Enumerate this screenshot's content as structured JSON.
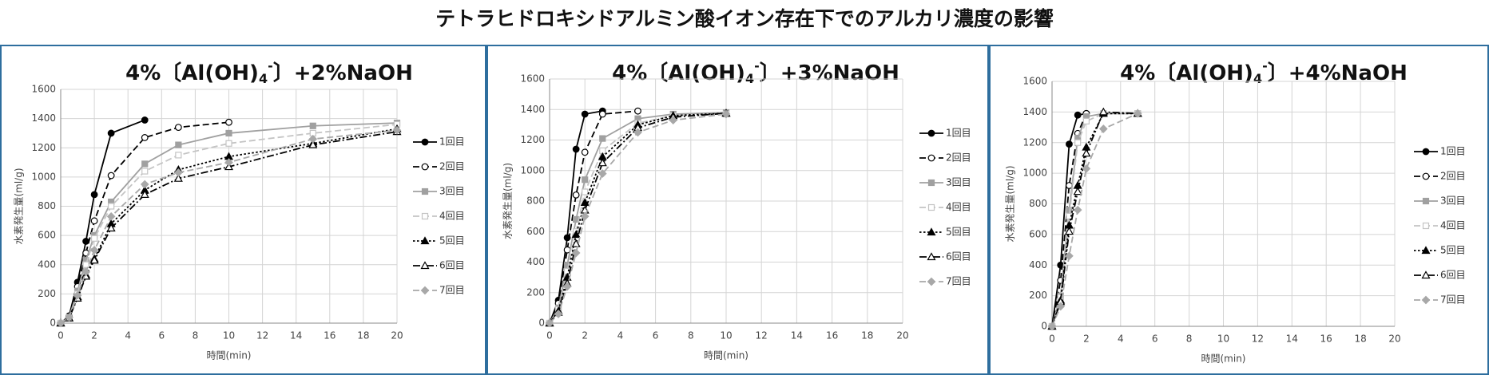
{
  "title": "テトラヒドロキシドアルミン酸イオン存在下でのアルカリ濃度の影響",
  "chart_data": [
    {
      "type": "line",
      "title": [
        "4%〔Al(OH)",
        "4",
        "-",
        "〕+2%NaOH"
      ],
      "xlabel": "時間(min)",
      "ylabel": "水素発生量(ml/g)",
      "xlim": [
        0,
        20
      ],
      "xticks": [
        0,
        2,
        4,
        6,
        8,
        10,
        12,
        14,
        16,
        18,
        20
      ],
      "ylim": [
        0,
        1600
      ],
      "yticks": [
        0,
        200,
        400,
        600,
        800,
        1000,
        1200,
        1400,
        1600
      ],
      "grid": true,
      "legend": "right",
      "series": [
        {
          "name": "1回目",
          "color": "#000000",
          "dash": "solid",
          "marker": "circle",
          "filled": true,
          "x": [
            0,
            0.5,
            1,
            1.5,
            2,
            3,
            5
          ],
          "values": [
            0,
            50,
            280,
            560,
            880,
            1300,
            1390
          ]
        },
        {
          "name": "2回目",
          "color": "#000000",
          "dash": "dashed",
          "marker": "circle",
          "filled": false,
          "x": [
            0,
            0.5,
            1,
            1.5,
            2,
            3,
            5,
            7,
            10
          ],
          "values": [
            0,
            45,
            250,
            480,
            700,
            1010,
            1270,
            1340,
            1375
          ]
        },
        {
          "name": "3回目",
          "color": "#a0a0a0",
          "dash": "solid",
          "marker": "square",
          "filled": true,
          "x": [
            0,
            0.5,
            1,
            1.5,
            2,
            3,
            5,
            7,
            10,
            15,
            20
          ],
          "values": [
            0,
            40,
            220,
            430,
            600,
            830,
            1090,
            1220,
            1300,
            1350,
            1370
          ]
        },
        {
          "name": "4回目",
          "color": "#c4c4c4",
          "dash": "dashed",
          "marker": "square",
          "filled": false,
          "x": [
            0,
            0.5,
            1,
            1.5,
            2,
            3,
            5,
            7,
            10,
            15,
            20
          ],
          "values": [
            0,
            40,
            200,
            400,
            580,
            800,
            1040,
            1150,
            1230,
            1300,
            1360
          ]
        },
        {
          "name": "5回目",
          "color": "#000000",
          "dash": "dotted",
          "marker": "triangle",
          "filled": true,
          "x": [
            0,
            0.5,
            1,
            1.5,
            2,
            3,
            5,
            7,
            10,
            15,
            20
          ],
          "values": [
            0,
            35,
            180,
            330,
            440,
            680,
            910,
            1050,
            1140,
            1230,
            1330
          ]
        },
        {
          "name": "6回目",
          "color": "#000000",
          "dash": "dashdot",
          "marker": "triangle",
          "filled": false,
          "x": [
            0,
            0.5,
            1,
            1.5,
            2,
            3,
            5,
            7,
            10,
            15,
            20
          ],
          "values": [
            0,
            35,
            170,
            320,
            430,
            650,
            880,
            990,
            1070,
            1220,
            1310
          ]
        },
        {
          "name": "7回目",
          "color": "#a8a8a8",
          "dash": "dashed",
          "marker": "diamond",
          "filled": true,
          "x": [
            0,
            0.5,
            1,
            1.5,
            2,
            3,
            5,
            7,
            10,
            15,
            20
          ],
          "values": [
            0,
            40,
            190,
            350,
            500,
            730,
            950,
            1030,
            1100,
            1260,
            1320
          ]
        }
      ]
    },
    {
      "type": "line",
      "title": [
        "4%〔Al(OH)",
        "4",
        "-",
        "〕+3%NaOH"
      ],
      "xlabel": "時間(min)",
      "ylabel": "水素発生量(ml/g)",
      "xlim": [
        0,
        20
      ],
      "xticks": [
        0,
        2,
        4,
        6,
        8,
        10,
        12,
        14,
        16,
        18,
        20
      ],
      "ylim": [
        0,
        1600
      ],
      "yticks": [
        0,
        200,
        400,
        600,
        800,
        1000,
        1200,
        1400,
        1600
      ],
      "grid": true,
      "legend": "right",
      "series": [
        {
          "name": "1回目",
          "color": "#000000",
          "dash": "solid",
          "marker": "circle",
          "filled": true,
          "x": [
            0,
            0.5,
            1,
            1.5,
            2,
            3
          ],
          "values": [
            0,
            150,
            560,
            1140,
            1370,
            1390
          ]
        },
        {
          "name": "2回目",
          "color": "#000000",
          "dash": "dashed",
          "marker": "circle",
          "filled": false,
          "x": [
            0,
            0.5,
            1,
            1.5,
            2,
            3,
            5
          ],
          "values": [
            0,
            130,
            480,
            840,
            1120,
            1370,
            1390
          ]
        },
        {
          "name": "3回目",
          "color": "#a0a0a0",
          "dash": "solid",
          "marker": "square",
          "filled": true,
          "x": [
            0,
            0.5,
            1,
            1.5,
            2,
            3,
            5,
            7,
            10
          ],
          "values": [
            0,
            100,
            380,
            680,
            940,
            1210,
            1340,
            1370,
            1380
          ]
        },
        {
          "name": "4回目",
          "color": "#c4c4c4",
          "dash": "dashed",
          "marker": "square",
          "filled": false,
          "x": [
            0,
            0.5,
            1,
            1.5,
            2,
            3,
            5,
            7,
            10
          ],
          "values": [
            0,
            90,
            340,
            600,
            860,
            1130,
            1310,
            1360,
            1370
          ]
        },
        {
          "name": "5回目",
          "color": "#000000",
          "dash": "dotted",
          "marker": "triangle",
          "filled": true,
          "x": [
            0,
            0.5,
            1,
            1.5,
            2,
            3,
            5,
            7,
            10
          ],
          "values": [
            0,
            80,
            300,
            580,
            790,
            1090,
            1300,
            1360,
            1375
          ]
        },
        {
          "name": "6回目",
          "color": "#000000",
          "dash": "dashdot",
          "marker": "triangle",
          "filled": false,
          "x": [
            0,
            0.5,
            1,
            1.5,
            2,
            3,
            5,
            7,
            10
          ],
          "values": [
            0,
            70,
            260,
            520,
            740,
            1050,
            1280,
            1350,
            1375
          ]
        },
        {
          "name": "7回目",
          "color": "#a8a8a8",
          "dash": "dashed",
          "marker": "diamond",
          "filled": true,
          "x": [
            0,
            0.5,
            1,
            1.5,
            2,
            3,
            5,
            7,
            10
          ],
          "values": [
            0,
            60,
            240,
            460,
            700,
            980,
            1250,
            1330,
            1370
          ]
        }
      ]
    },
    {
      "type": "line",
      "title": [
        "4%〔Al(OH)",
        "4",
        "-",
        "〕+4%NaOH"
      ],
      "xlabel": "時間(min)",
      "ylabel": "水素発生量(ml/g)",
      "xlim": [
        0,
        20
      ],
      "xticks": [
        0,
        2,
        4,
        6,
        8,
        10,
        12,
        14,
        16,
        18,
        20
      ],
      "ylim": [
        0,
        1600
      ],
      "yticks": [
        0,
        200,
        400,
        600,
        800,
        1000,
        1200,
        1400,
        1600
      ],
      "grid": true,
      "legend": "right",
      "series": [
        {
          "name": "1回目",
          "color": "#000000",
          "dash": "solid",
          "marker": "circle",
          "filled": true,
          "x": [
            0,
            0.5,
            1,
            1.5,
            2
          ],
          "values": [
            0,
            400,
            1190,
            1380,
            1390
          ]
        },
        {
          "name": "2回目",
          "color": "#000000",
          "dash": "dashed",
          "marker": "circle",
          "filled": false,
          "x": [
            0,
            0.5,
            1,
            1.5,
            2
          ],
          "values": [
            0,
            300,
            920,
            1260,
            1390
          ]
        },
        {
          "name": "3回目",
          "color": "#a0a0a0",
          "dash": "solid",
          "marker": "square",
          "filled": true,
          "x": [
            0,
            0.5,
            1,
            1.5,
            2,
            3,
            5
          ],
          "values": [
            0,
            200,
            760,
            1230,
            1370,
            1390,
            1390
          ]
        },
        {
          "name": "4回目",
          "color": "#c4c4c4",
          "dash": "dashed",
          "marker": "square",
          "filled": false,
          "x": [
            0,
            0.5,
            1,
            1.5,
            2,
            3,
            5
          ],
          "values": [
            0,
            190,
            720,
            1200,
            1340,
            1390,
            1390
          ]
        },
        {
          "name": "5回目",
          "color": "#000000",
          "dash": "dotted",
          "marker": "triangle",
          "filled": true,
          "x": [
            0,
            0.5,
            1,
            1.5,
            2,
            3,
            5
          ],
          "values": [
            0,
            170,
            660,
            920,
            1170,
            1390,
            1390
          ]
        },
        {
          "name": "6回目",
          "color": "#000000",
          "dash": "dashdot",
          "marker": "triangle",
          "filled": false,
          "x": [
            0,
            0.5,
            1,
            1.5,
            2,
            3,
            5
          ],
          "values": [
            0,
            160,
            620,
            880,
            1130,
            1400,
            1390
          ]
        },
        {
          "name": "7回目",
          "color": "#a8a8a8",
          "dash": "dashed",
          "marker": "diamond",
          "filled": true,
          "x": [
            0,
            0.5,
            1,
            1.5,
            2,
            3,
            5
          ],
          "values": [
            0,
            130,
            460,
            760,
            1030,
            1290,
            1390
          ]
        }
      ]
    }
  ]
}
